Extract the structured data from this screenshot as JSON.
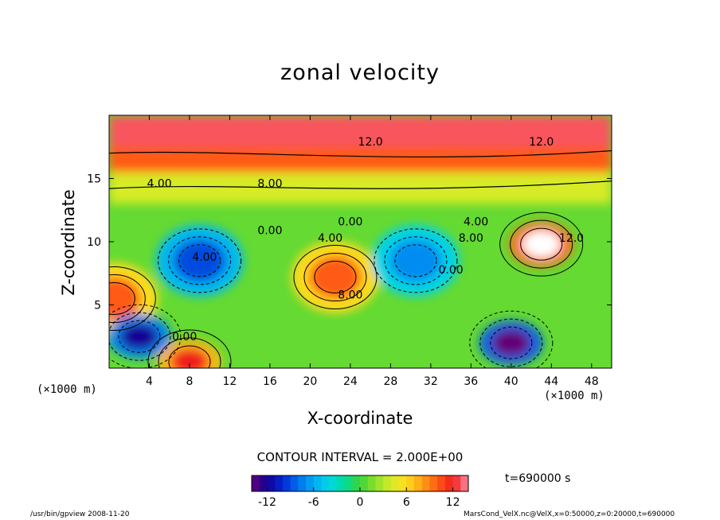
{
  "chart_data": {
    "type": "heatmap",
    "title": "zonal velocity",
    "xlabel": "X-coordinate",
    "ylabel": "Z-coordinate",
    "x_unit": "(×1000 m)",
    "y_unit": "(×1000 m)",
    "xlim": [
      0,
      50
    ],
    "ylim": [
      0,
      20
    ],
    "x_ticks": [
      4,
      8,
      12,
      16,
      20,
      24,
      28,
      32,
      36,
      40,
      44,
      48
    ],
    "y_ticks": [
      5,
      10,
      15
    ],
    "colorbar": {
      "range": [
        -14,
        14
      ],
      "ticks": [
        -12,
        -6,
        0,
        6,
        12
      ]
    },
    "contour_interval_text": "CONTOUR INTERVAL = 2.000E+00",
    "contour_labels": [
      {
        "text": "12.0",
        "x": 26,
        "z": 17.6
      },
      {
        "text": "12.0",
        "x": 43,
        "z": 17.6
      },
      {
        "text": "8.00",
        "x": 16,
        "z": 14.3
      },
      {
        "text": "4.00",
        "x": 5,
        "z": 14.3
      },
      {
        "text": "4.00",
        "x": 22,
        "z": 10.0
      },
      {
        "text": "8.00",
        "x": 24,
        "z": 5.5
      },
      {
        "text": "0.00",
        "x": 16,
        "z": 10.6
      },
      {
        "text": "0.00",
        "x": 24,
        "z": 11.3
      },
      {
        "text": "4.00",
        "x": 9.5,
        "z": 8.5
      },
      {
        "text": "0.00",
        "x": 7.5,
        "z": 2.2
      },
      {
        "text": "0.00",
        "x": 34,
        "z": 7.5
      },
      {
        "text": "4.00",
        "x": 36.5,
        "z": 11.3
      },
      {
        "text": "8.00",
        "x": 36,
        "z": 10.0
      },
      {
        "text": "12.0",
        "x": 46,
        "z": 10.0
      }
    ],
    "features": [
      {
        "kind": "max",
        "x": 22.5,
        "z": 7.2,
        "value": 10
      },
      {
        "kind": "max",
        "x": 43,
        "z": 9.8,
        "value": 16
      },
      {
        "kind": "min",
        "x": 9,
        "z": 8.5,
        "value": -9
      },
      {
        "kind": "min",
        "x": 30.5,
        "z": 8.5,
        "value": -7
      },
      {
        "kind": "max",
        "x": 8,
        "z": 0.5,
        "value": 12
      },
      {
        "kind": "max",
        "x": 0.5,
        "z": 5.5,
        "value": 10
      },
      {
        "kind": "min",
        "x": 40,
        "z": 2,
        "value": -14
      },
      {
        "kind": "min",
        "x": 3,
        "z": 2.5,
        "value": -12
      }
    ]
  },
  "time_label": "t=690000 s",
  "footer_left": "/usr/bin/gpview   2008-11-20",
  "footer_right": "MarsCond_VelX.nc@VelX,x=0:50000,z=0:20000,t=690000"
}
